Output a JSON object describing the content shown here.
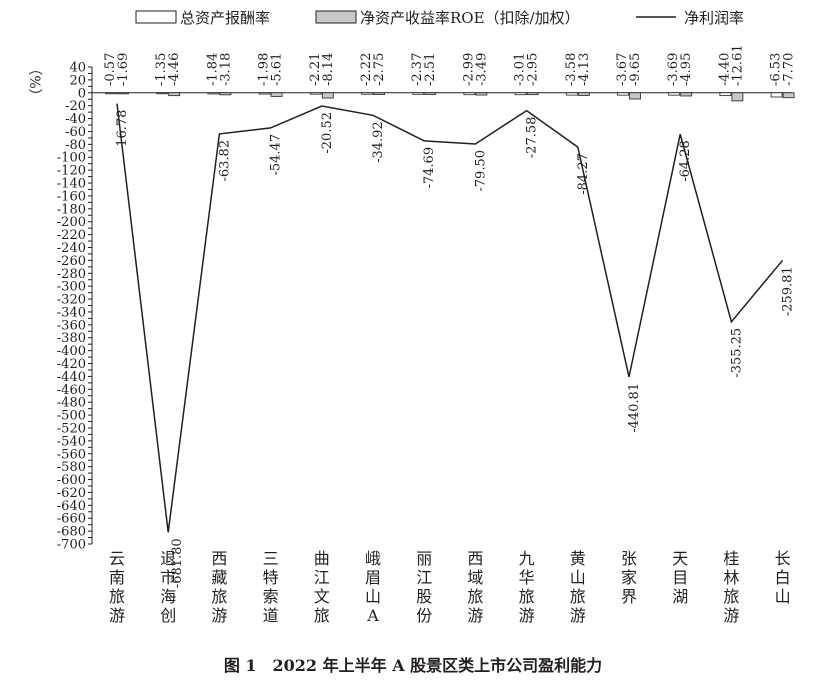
{
  "chart_data": {
    "type": "bar",
    "title": "图 1　2022 年上半年 A 股景区类上市公司盈利能力",
    "ylabel": "%",
    "ylim": [
      -700,
      40
    ],
    "y_step": 10,
    "y_label_step": 20,
    "categories": [
      "云南旅游",
      "退市海创",
      "西藏旅游",
      "三特索道",
      "曲江文旅",
      "峨眉山A",
      "丽江股份",
      "西域旅游",
      "九华旅游",
      "黄山旅游",
      "张家界",
      "天目湖",
      "桂林旅游",
      "长白山"
    ],
    "series": [
      {
        "name": "总资产报酬率",
        "kind": "bar",
        "fill": "#ffffff",
        "values": [
          -0.57,
          -1.35,
          -1.84,
          -1.98,
          -2.21,
          -2.22,
          -2.37,
          -2.99,
          -3.01,
          -3.58,
          -3.67,
          -3.69,
          -4.4,
          -6.53
        ],
        "labels": [
          "-0.57",
          "-1.35",
          "-1.84",
          "-1.98",
          "-2.21",
          "-2.22",
          "-2.37",
          "-2.99",
          "-3.01",
          "-3.58",
          "-3.67",
          "-3.69",
          "-4.40",
          "-6.53"
        ]
      },
      {
        "name": "净资产收益率ROE（扣除/加权）",
        "kind": "bar",
        "fill": "#c8c8c8",
        "values": [
          -1.69,
          -4.46,
          -3.18,
          -5.61,
          -8.14,
          -2.75,
          -2.51,
          -3.49,
          -2.95,
          -4.13,
          -9.65,
          -4.95,
          -12.61,
          -7.7
        ],
        "labels": [
          "-1.69",
          "-4.46",
          "-3.18",
          "-5.61",
          "-8.14",
          "-2.75",
          "-2.51",
          "-3.49",
          "-2.95",
          "-4.13",
          "-9.65",
          "-4.95",
          "-12.61",
          "-7.70"
        ]
      },
      {
        "name": "净利润率",
        "kind": "line",
        "values": [
          -16.78,
          -681.8,
          -63.82,
          -54.47,
          -20.52,
          -34.92,
          -74.69,
          -79.5,
          -27.58,
          -84.27,
          -440.81,
          -64.28,
          -355.25,
          -259.81
        ],
        "labels": [
          "-16.78",
          "-681.80",
          "-63.82",
          "-54.47",
          "-20.52",
          "-34.92",
          "-74.69",
          "-79.50",
          "-27.58",
          "-84.27",
          "-440.81",
          "-64.28",
          "-355.25",
          "-259.81"
        ]
      }
    ],
    "legend": {
      "position": "top",
      "items": [
        "总资产报酬率",
        "净资产收益率ROE（扣除/加权）",
        "净利润率"
      ]
    },
    "grid": false,
    "colors": {
      "axis": "#231f20",
      "line": "#231f20",
      "bar_outline": "#231f20"
    }
  }
}
